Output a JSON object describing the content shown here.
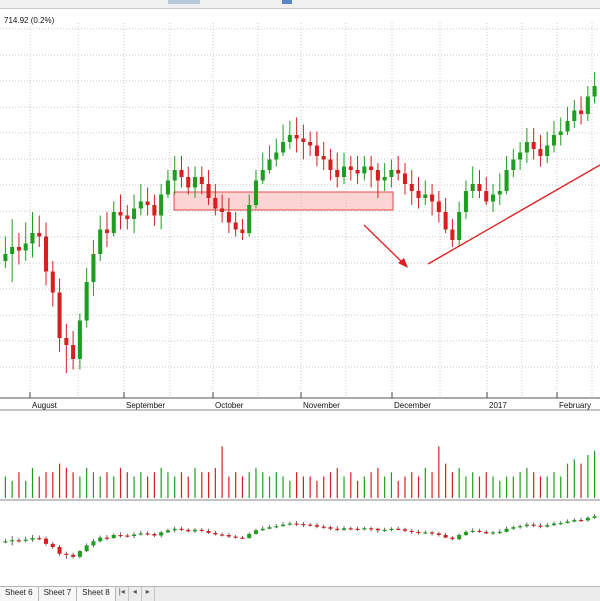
{
  "header": {
    "price_readout": "714.92 (0.2%)"
  },
  "chart_data": {
    "type": "candlestick",
    "grid": true,
    "x_tick_labels": [
      "August",
      "September",
      "October",
      "November",
      "December",
      "2017",
      "February"
    ],
    "colors": {
      "up": "#1e9e1e",
      "down": "#d62020",
      "highlight": "#f08080",
      "trendline": "#e02020"
    },
    "candles": [
      [
        236,
        238,
        243,
        234
      ],
      [
        238,
        240,
        248,
        230
      ],
      [
        240,
        239,
        244,
        235
      ],
      [
        239,
        241,
        247,
        236
      ],
      [
        241,
        244,
        250,
        237
      ],
      [
        244,
        243,
        249,
        240
      ],
      [
        243,
        233,
        247,
        229
      ],
      [
        233,
        227,
        236,
        223
      ],
      [
        227,
        214,
        231,
        210
      ],
      [
        214,
        212,
        218,
        204
      ],
      [
        212,
        208,
        216,
        205
      ],
      [
        208,
        219,
        221,
        205
      ],
      [
        219,
        230,
        234,
        217
      ],
      [
        230,
        238,
        242,
        226
      ],
      [
        238,
        245,
        249,
        236
      ],
      [
        245,
        244,
        250,
        240
      ],
      [
        244,
        250,
        253,
        243
      ],
      [
        250,
        249,
        255,
        245
      ],
      [
        249,
        248,
        252,
        245
      ],
      [
        248,
        251,
        255,
        244
      ],
      [
        251,
        253,
        258,
        249
      ],
      [
        253,
        252,
        257,
        249
      ],
      [
        252,
        249,
        255,
        246
      ],
      [
        249,
        255,
        258,
        245
      ],
      [
        255,
        259,
        262,
        254
      ],
      [
        259,
        262,
        266,
        255
      ],
      [
        262,
        260,
        266,
        257
      ],
      [
        260,
        257,
        263,
        255
      ],
      [
        257,
        260,
        263,
        254
      ],
      [
        260,
        258,
        263,
        255
      ],
      [
        258,
        254,
        262,
        252
      ],
      [
        254,
        251,
        258,
        249
      ],
      [
        251,
        250,
        255,
        247
      ],
      [
        250,
        247,
        254,
        244
      ],
      [
        247,
        245,
        250,
        243
      ],
      [
        245,
        244,
        248,
        242
      ],
      [
        244,
        252,
        255,
        243
      ],
      [
        252,
        259,
        262,
        251
      ],
      [
        259,
        262,
        267,
        258
      ],
      [
        262,
        265,
        269,
        261
      ],
      [
        265,
        267,
        271,
        263
      ],
      [
        267,
        270,
        275,
        266
      ],
      [
        270,
        272,
        276,
        268
      ],
      [
        272,
        271,
        277,
        267
      ],
      [
        271,
        270,
        275,
        265
      ],
      [
        270,
        269,
        273,
        266
      ],
      [
        269,
        266,
        273,
        263
      ],
      [
        266,
        265,
        270,
        262
      ],
      [
        265,
        262,
        268,
        259
      ],
      [
        262,
        260,
        267,
        257
      ],
      [
        260,
        263,
        267,
        258
      ],
      [
        263,
        262,
        266,
        259
      ],
      [
        262,
        261,
        266,
        258
      ],
      [
        261,
        263,
        266,
        259
      ],
      [
        263,
        262,
        266,
        257
      ],
      [
        262,
        259,
        264,
        254
      ],
      [
        259,
        260,
        264,
        256
      ],
      [
        260,
        262,
        265,
        257
      ],
      [
        262,
        261,
        266,
        259
      ],
      [
        261,
        258,
        264,
        255
      ],
      [
        258,
        256,
        262,
        252
      ],
      [
        256,
        254,
        260,
        251
      ],
      [
        254,
        255,
        259,
        252
      ],
      [
        255,
        253,
        258,
        249
      ],
      [
        253,
        250,
        256,
        247
      ],
      [
        250,
        245,
        254,
        244
      ],
      [
        245,
        242,
        248,
        240
      ],
      [
        242,
        250,
        253,
        240
      ],
      [
        250,
        256,
        259,
        248
      ],
      [
        256,
        258,
        263,
        254
      ],
      [
        258,
        256,
        262,
        254
      ],
      [
        256,
        253,
        260,
        252
      ],
      [
        253,
        255,
        258,
        250
      ],
      [
        255,
        256,
        261,
        252
      ],
      [
        256,
        262,
        266,
        255
      ],
      [
        262,
        265,
        268,
        260
      ],
      [
        265,
        267,
        270,
        262
      ],
      [
        267,
        270,
        274,
        264
      ],
      [
        270,
        268,
        274,
        265
      ],
      [
        268,
        266,
        272,
        263
      ],
      [
        266,
        269,
        273,
        264
      ],
      [
        269,
        272,
        276,
        267
      ],
      [
        272,
        273,
        277,
        269
      ],
      [
        273,
        276,
        280,
        272
      ],
      [
        276,
        279,
        282,
        274
      ],
      [
        279,
        278,
        283,
        275
      ],
      [
        278,
        283,
        286,
        276
      ],
      [
        283,
        286,
        290,
        281
      ]
    ]
  },
  "chart_data_volume": [
    5,
    4,
    6,
    4,
    7,
    5,
    6,
    6,
    8,
    7,
    6,
    5,
    7,
    6,
    5,
    6,
    5,
    7,
    6,
    5,
    6,
    5,
    6,
    7,
    6,
    5,
    6,
    5,
    7,
    6,
    6,
    7,
    12,
    5,
    6,
    5,
    6,
    7,
    6,
    5,
    6,
    5,
    4,
    6,
    5,
    5,
    4,
    5,
    6,
    7,
    5,
    6,
    4,
    5,
    6,
    7,
    5,
    6,
    4,
    5,
    6,
    5,
    7,
    6,
    12,
    8,
    6,
    7,
    5,
    6,
    5,
    6,
    5,
    4,
    5,
    5,
    6,
    7,
    6,
    5,
    5,
    6,
    5,
    8,
    9,
    8,
    10,
    11
  ],
  "sheet_tabs": [
    "Sheet 6",
    "Sheet 7",
    "Sheet 8"
  ]
}
